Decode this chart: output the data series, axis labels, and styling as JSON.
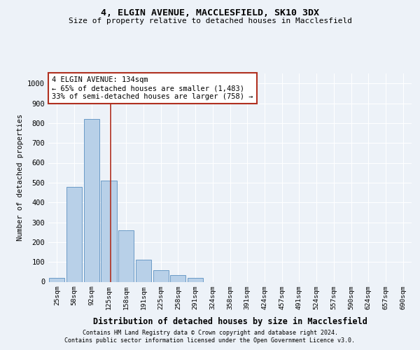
{
  "title1": "4, ELGIN AVENUE, MACCLESFIELD, SK10 3DX",
  "title2": "Size of property relative to detached houses in Macclesfield",
  "xlabel": "Distribution of detached houses by size in Macclesfield",
  "ylabel": "Number of detached properties",
  "categories": [
    "25sqm",
    "58sqm",
    "92sqm",
    "125sqm",
    "158sqm",
    "191sqm",
    "225sqm",
    "258sqm",
    "291sqm",
    "324sqm",
    "358sqm",
    "391sqm",
    "424sqm",
    "457sqm",
    "491sqm",
    "524sqm",
    "557sqm",
    "590sqm",
    "624sqm",
    "657sqm",
    "690sqm"
  ],
  "values": [
    20,
    480,
    820,
    510,
    260,
    110,
    60,
    35,
    20,
    0,
    0,
    0,
    0,
    0,
    0,
    0,
    0,
    0,
    0,
    0,
    0
  ],
  "bar_color": "#b8d0e8",
  "bar_edge_color": "#5a8fc0",
  "vline_pos": 3.1,
  "vline_color": "#b03020",
  "annotation_text": "4 ELGIN AVENUE: 134sqm\n← 65% of detached houses are smaller (1,483)\n33% of semi-detached houses are larger (758) →",
  "annotation_box_color": "#ffffff",
  "annotation_border_color": "#b03020",
  "ylim": [
    0,
    1050
  ],
  "yticks": [
    0,
    100,
    200,
    300,
    400,
    500,
    600,
    700,
    800,
    900,
    1000
  ],
  "footer1": "Contains HM Land Registry data © Crown copyright and database right 2024.",
  "footer2": "Contains public sector information licensed under the Open Government Licence v3.0.",
  "bg_color": "#edf2f8",
  "plot_bg_color": "#edf2f8",
  "grid_color": "#ffffff"
}
